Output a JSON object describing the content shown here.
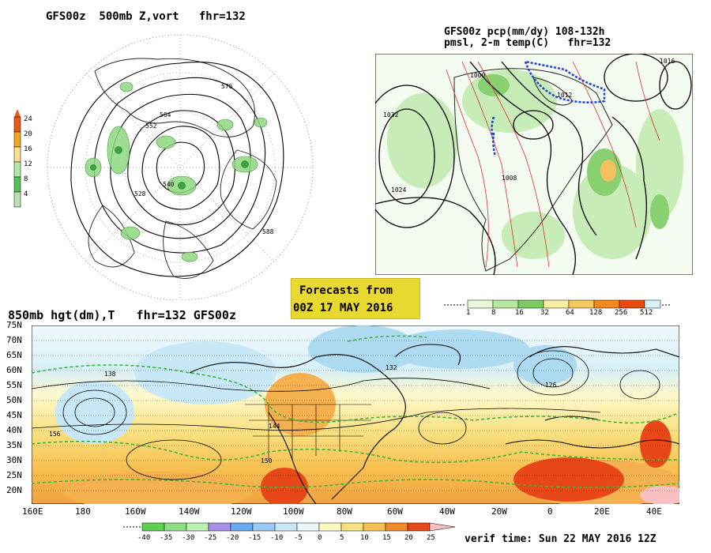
{
  "panel_500mb": {
    "title": "GFS00z  500mb Z,vort   fhr=132",
    "colorbar": {
      "labels": [
        "24",
        "20",
        "16",
        "12",
        "8",
        "4"
      ],
      "colors": [
        "#e85a1a",
        "#f5a623",
        "#f8e08e",
        "#b5e8a8",
        "#56c158",
        "#b8e0b0"
      ]
    },
    "contour_labels": [
      "576",
      "564",
      "552",
      "540",
      "528",
      "588"
    ]
  },
  "panel_precip": {
    "title_line1": "GFS00z pcp(mm/dy) 108-132h",
    "title_line2": "pmsl, 2-m temp(C)   fhr=132",
    "isobar_labels": [
      "1016",
      "1008",
      "1024",
      "1032",
      "1000",
      "1012"
    ],
    "colorbar": {
      "labels": [
        "1",
        "8",
        "16",
        "32",
        "64",
        "128",
        "256",
        "512"
      ],
      "colors": [
        "#e8f8d8",
        "#b8e8a0",
        "#78cc60",
        "#f8f0a0",
        "#f8c860",
        "#f08a20",
        "#e84a10",
        "#d8f4f8"
      ]
    }
  },
  "banner": {
    "line1": "Forecasts from",
    "line2": "00Z 17 MAY 2016",
    "bg": "#e8d830"
  },
  "panel_850mb": {
    "title": "850mb hgt(dm),T   fhr=132 GFS00z",
    "lat_labels": [
      "75N",
      "70N",
      "65N",
      "60N",
      "55N",
      "50N",
      "45N",
      "40N",
      "35N",
      "30N",
      "25N",
      "20N"
    ],
    "lon_labels": [
      "160E",
      "180",
      "160W",
      "140W",
      "120W",
      "100W",
      "80W",
      "60W",
      "40W",
      "20W",
      "0",
      "20E",
      "40E"
    ],
    "height_labels": [
      "138",
      "144",
      "150",
      "156",
      "132",
      "126"
    ],
    "colorbar": {
      "labels": [
        "-40",
        "-35",
        "-30",
        "-25",
        "-20",
        "-15",
        "-10",
        "-5",
        "0",
        "5",
        "10",
        "15",
        "20",
        "25"
      ],
      "colors": [
        "#f0f0f0",
        "#5cd050",
        "#88e080",
        "#b8f0b0",
        "#a890e8",
        "#68a8f0",
        "#98c8f8",
        "#c8e8f8",
        "#e8f8fc",
        "#fff8c0",
        "#f8e080",
        "#f8c050",
        "#f08a28",
        "#e84818",
        "#f8c0c0"
      ]
    }
  },
  "verif_time": "verif time: Sun 22 MAY 2016 12Z"
}
